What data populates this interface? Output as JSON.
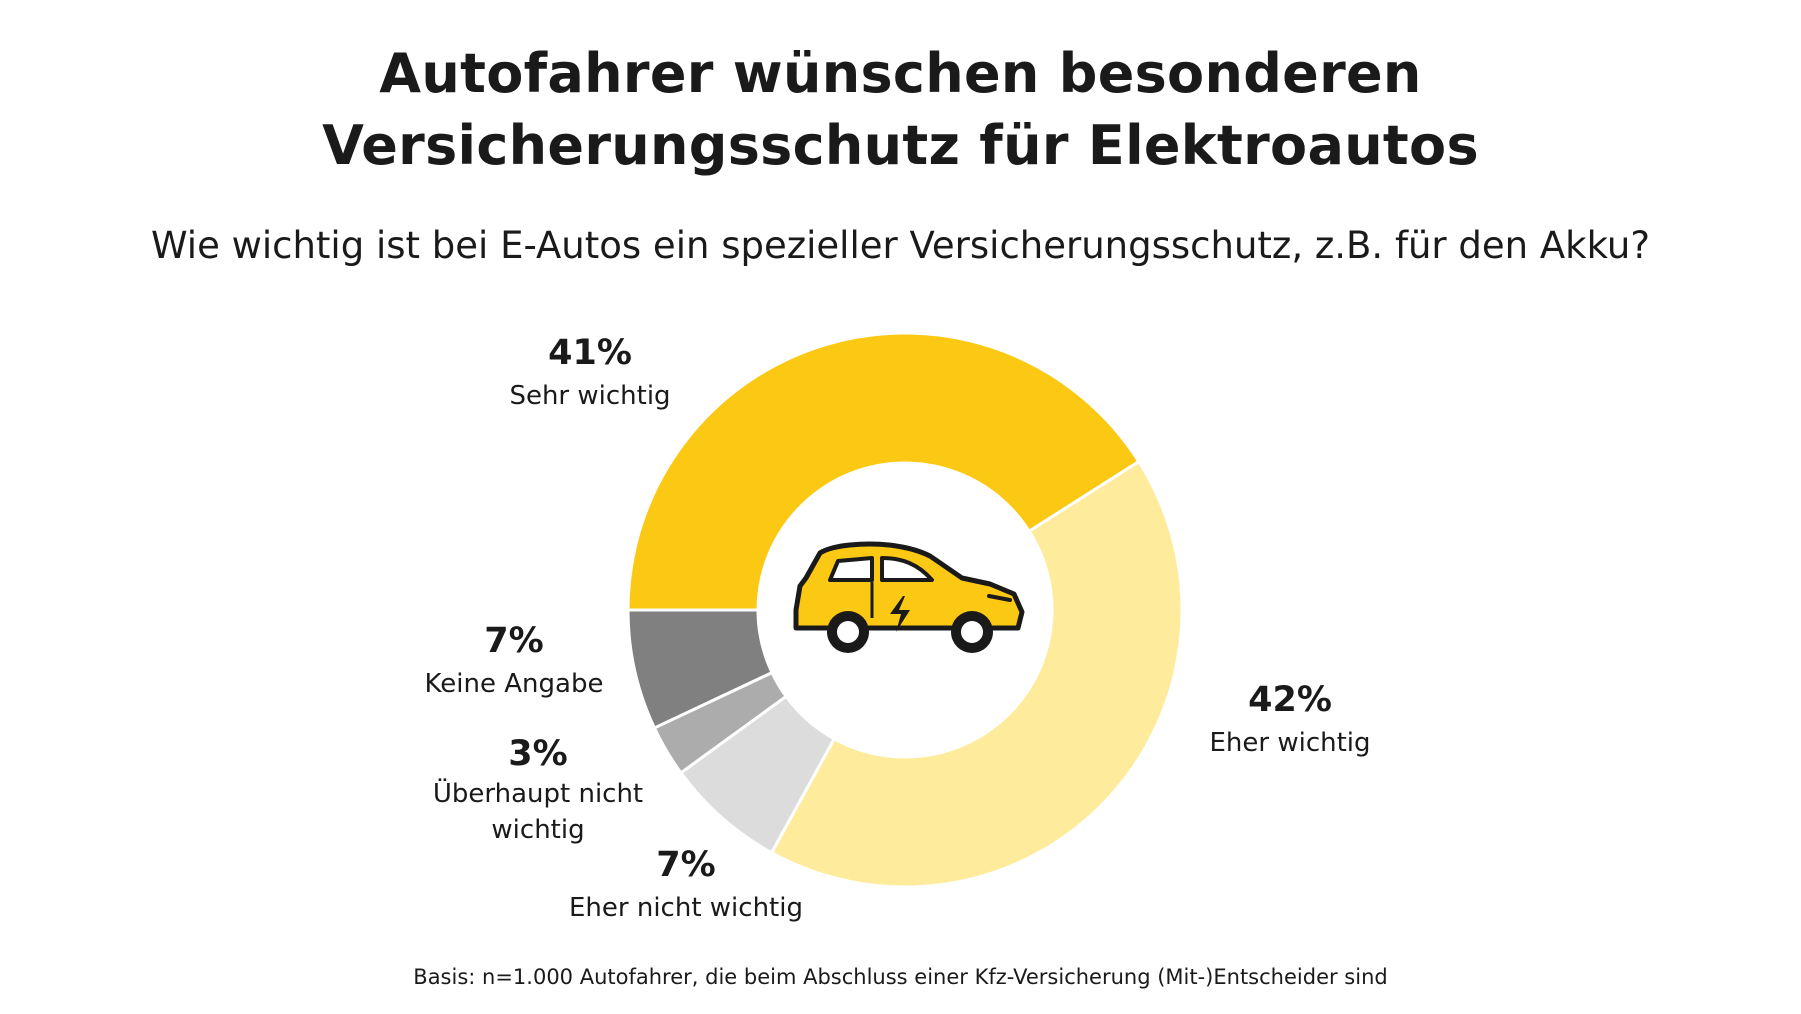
{
  "title_lines": [
    "Autofahrer wünschen besonderen",
    "Versicherungsschutz für Elektroautos"
  ],
  "subtitle": "Wie wichtig ist bei E-Autos ein spezieller Versicherungsschutz, z.B. für den Akku?",
  "footnote": "Basis: n=1.000 Autofahrer, die beim Abschluss einer Kfz-Versicherung (Mit-)Entscheider sind",
  "center_icon": "electric-car-icon",
  "chart_data": {
    "type": "pie",
    "style": "donut",
    "title": "Autofahrer wünschen besonderen Versicherungsschutz für Elektroautos",
    "subtitle": "Wie wichtig ist bei E-Autos ein spezieller Versicherungsschutz, z.B. für den Akku?",
    "unit": "%",
    "slices": [
      {
        "key": "sehr-wichtig",
        "label": "Sehr wichtig",
        "value": 41,
        "display": "41%",
        "color": "#FBC913"
      },
      {
        "key": "eher-wichtig",
        "label": "Eher wichtig",
        "value": 42,
        "display": "42%",
        "color": "#FEEC9C"
      },
      {
        "key": "eher-nicht-wichtig",
        "label": "Eher nicht wichtig",
        "value": 7,
        "display": "7%",
        "color": "#DCDCDC"
      },
      {
        "key": "ueberhaupt-nicht-wichtig",
        "label": "Überhaupt nicht wichtig",
        "label_lines": [
          "Überhaupt nicht",
          "wichtig"
        ],
        "value": 3,
        "display": "3%",
        "color": "#ACACAC"
      },
      {
        "key": "keine-angabe",
        "label": "Keine Angabe",
        "value": 7,
        "display": "7%",
        "color": "#808080"
      }
    ]
  }
}
